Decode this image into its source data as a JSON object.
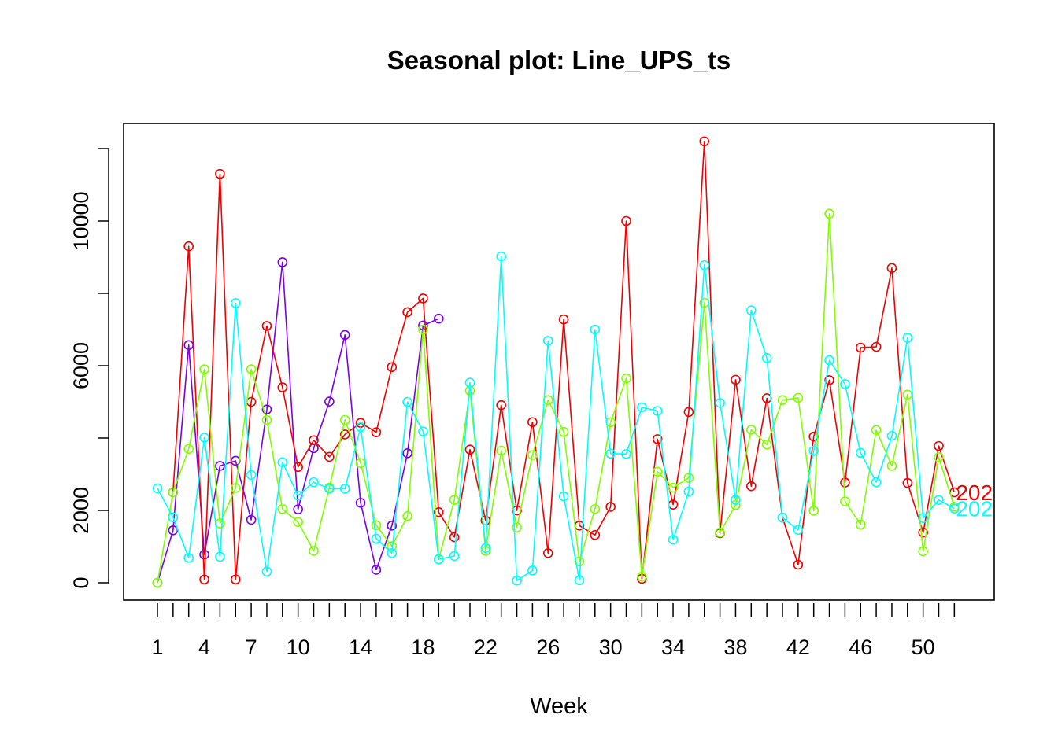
{
  "chart_data": {
    "type": "line",
    "title": "Seasonal plot: Line_UPS_ts",
    "xlabel": "Week",
    "ylabel": "",
    "x_range": [
      1,
      52
    ],
    "ylim": [
      0,
      12500
    ],
    "x_tick_labels": [
      1,
      4,
      7,
      10,
      14,
      18,
      22,
      26,
      30,
      34,
      38,
      42,
      46,
      50
    ],
    "y_tick_labels": [
      0,
      2000,
      6000,
      10000
    ],
    "grid": false,
    "marker": "open-circle",
    "series": [
      {
        "color": "#7B00E8",
        "weeks": [
          1,
          2,
          3,
          4,
          5,
          6,
          7,
          8,
          9,
          10,
          11,
          12,
          13,
          14,
          15,
          16,
          17,
          18,
          19
        ],
        "values": [
          0,
          1450,
          6570,
          780,
          3230,
          3370,
          1740,
          4790,
          8860,
          2030,
          3720,
          5010,
          6850,
          2210,
          360,
          1580,
          3580,
          7110,
          7300
        ]
      },
      {
        "color": "#F00000",
        "end_label": "202",
        "weeks": [
          2,
          3,
          4,
          5,
          6,
          7,
          8,
          9,
          10,
          11,
          12,
          13,
          14,
          15,
          16,
          17,
          18,
          19,
          20,
          21,
          22,
          23,
          24,
          25,
          26,
          27,
          28,
          29,
          30,
          31,
          32,
          33,
          34,
          35,
          36,
          37,
          38,
          39,
          40,
          41,
          42,
          43,
          44,
          45,
          46,
          47,
          48,
          49,
          50,
          51,
          52
        ],
        "values": [
          2500,
          9300,
          90,
          11300,
          90,
          5000,
          7100,
          5400,
          3200,
          3940,
          3480,
          4100,
          4420,
          4160,
          5960,
          7480,
          7860,
          1950,
          1260,
          3680,
          1720,
          4910,
          2000,
          4440,
          820,
          7280,
          1580,
          1320,
          2100,
          10000,
          110,
          3970,
          2160,
          4720,
          12200,
          1370,
          5610,
          2670,
          5100,
          1800,
          500,
          4040,
          5600,
          2770,
          6500,
          6520,
          8700,
          2760,
          1390,
          3780,
          2500
        ]
      },
      {
        "color": "#80FF00",
        "weeks": [
          1,
          2,
          3,
          4,
          5,
          6,
          7,
          8,
          9,
          10,
          11,
          12,
          13,
          14,
          15,
          16,
          17,
          18,
          19,
          20,
          21,
          22,
          23,
          24,
          25,
          26,
          27,
          28,
          29,
          30,
          31,
          32,
          33,
          34,
          35,
          36,
          37,
          38,
          39,
          40,
          41,
          42,
          43,
          44,
          45,
          46,
          47,
          48,
          49,
          50,
          51,
          52
        ],
        "values": [
          0,
          2500,
          3700,
          5900,
          1640,
          2620,
          5900,
          4500,
          2040,
          1680,
          880,
          2630,
          4500,
          3310,
          1590,
          1010,
          1840,
          7000,
          650,
          2290,
          5310,
          880,
          3650,
          1530,
          3530,
          5050,
          4170,
          590,
          2040,
          4440,
          5650,
          170,
          3070,
          2630,
          2900,
          7740,
          1390,
          2150,
          4230,
          3820,
          5050,
          5110,
          1990,
          10200,
          2250,
          1610,
          4220,
          3230,
          5200,
          870,
          3470,
          2100
        ]
      },
      {
        "color": "#00FFFF",
        "end_label": "202",
        "weeks": [
          1,
          2,
          3,
          4,
          5,
          6,
          7,
          8,
          9,
          10,
          11,
          12,
          13,
          14,
          15,
          16,
          17,
          18,
          19,
          20,
          21,
          22,
          23,
          24,
          25,
          26,
          27,
          28,
          29,
          30,
          31,
          32,
          33,
          34,
          35,
          36,
          37,
          38,
          39,
          40,
          41,
          42,
          43,
          44,
          45,
          46,
          47,
          48,
          49,
          50,
          51,
          52
        ],
        "values": [
          2610,
          1810,
          690,
          4010,
          720,
          7730,
          2980,
          310,
          3330,
          2410,
          2780,
          2600,
          2600,
          4300,
          1220,
          820,
          5000,
          4180,
          650,
          740,
          5530,
          960,
          9020,
          60,
          340,
          6690,
          2390,
          70,
          7000,
          3570,
          3560,
          4850,
          4750,
          1190,
          2520,
          8780,
          4970,
          2290,
          7530,
          6210,
          1800,
          1460,
          3650,
          6150,
          5490,
          3590,
          2780,
          4060,
          6770,
          1790,
          2290,
          2050
        ]
      }
    ]
  }
}
